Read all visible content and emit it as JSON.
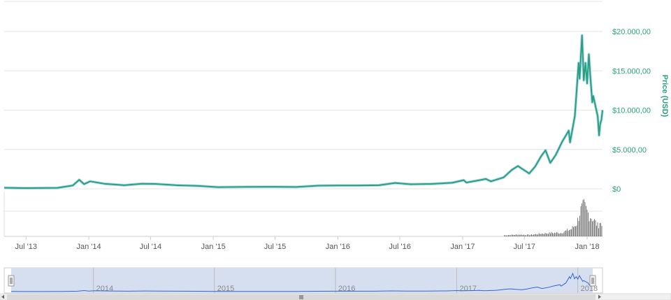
{
  "chart_data": {
    "type": "area",
    "y_axis_title": "Price (USD)",
    "y_ticks": [
      {
        "value": 0,
        "label": "$0"
      },
      {
        "value": 5000,
        "label": "$5.000,00"
      },
      {
        "value": 10000,
        "label": "$10.000,00"
      },
      {
        "value": 15000,
        "label": "$15.000,00"
      },
      {
        "value": 20000,
        "label": "$20.000,00"
      }
    ],
    "ylim": [
      0,
      24000
    ],
    "x_ticks": [
      {
        "date": "2013-07-01",
        "label": "Jul '13"
      },
      {
        "date": "2014-01-01",
        "label": "Jan '14"
      },
      {
        "date": "2014-07-01",
        "label": "Jul '14"
      },
      {
        "date": "2015-01-01",
        "label": "Jan '15"
      },
      {
        "date": "2015-07-01",
        "label": "Jul '15"
      },
      {
        "date": "2016-01-01",
        "label": "Jan '16"
      },
      {
        "date": "2016-07-01",
        "label": "Jul '16"
      },
      {
        "date": "2017-01-01",
        "label": "Jan '17"
      },
      {
        "date": "2017-07-01",
        "label": "Jul '17"
      },
      {
        "date": "2018-01-01",
        "label": "Jan '18"
      }
    ],
    "x_range": [
      "2013-04-28",
      "2018-02-15"
    ],
    "series": [
      {
        "color": "#27a17e",
        "points": [
          [
            "2013-04-28",
            135
          ],
          [
            "2013-07-01",
            90
          ],
          [
            "2013-10-01",
            125
          ],
          [
            "2013-11-15",
            420
          ],
          [
            "2013-12-04",
            1150
          ],
          [
            "2013-12-18",
            600
          ],
          [
            "2014-01-05",
            950
          ],
          [
            "2014-02-15",
            650
          ],
          [
            "2014-04-15",
            450
          ],
          [
            "2014-06-05",
            650
          ],
          [
            "2014-07-15",
            620
          ],
          [
            "2014-09-15",
            450
          ],
          [
            "2014-11-15",
            370
          ],
          [
            "2015-01-15",
            210
          ],
          [
            "2015-04-01",
            250
          ],
          [
            "2015-07-01",
            260
          ],
          [
            "2015-09-01",
            230
          ],
          [
            "2015-11-05",
            400
          ],
          [
            "2016-01-01",
            430
          ],
          [
            "2016-03-01",
            420
          ],
          [
            "2016-05-01",
            450
          ],
          [
            "2016-06-17",
            750
          ],
          [
            "2016-08-01",
            580
          ],
          [
            "2016-10-01",
            620
          ],
          [
            "2016-12-01",
            760
          ],
          [
            "2017-01-04",
            1100
          ],
          [
            "2017-01-12",
            800
          ],
          [
            "2017-02-20",
            1100
          ],
          [
            "2017-03-10",
            1250
          ],
          [
            "2017-03-25",
            950
          ],
          [
            "2017-05-01",
            1450
          ],
          [
            "2017-05-25",
            2400
          ],
          [
            "2017-06-12",
            2900
          ],
          [
            "2017-07-15",
            1950
          ],
          [
            "2017-08-01",
            2800
          ],
          [
            "2017-08-20",
            4200
          ],
          [
            "2017-09-01",
            4900
          ],
          [
            "2017-09-15",
            3300
          ],
          [
            "2017-10-01",
            4300
          ],
          [
            "2017-10-20",
            6000
          ],
          [
            "2017-11-08",
            7400
          ],
          [
            "2017-11-12",
            5900
          ],
          [
            "2017-11-26",
            9300
          ],
          [
            "2017-12-07",
            16000
          ],
          [
            "2017-12-10",
            14000
          ],
          [
            "2017-12-17",
            19500
          ],
          [
            "2017-12-22",
            13800
          ],
          [
            "2017-12-27",
            16000
          ],
          [
            "2018-01-01",
            13400
          ],
          [
            "2018-01-06",
            17100
          ],
          [
            "2018-01-10",
            14500
          ],
          [
            "2018-01-16",
            11000
          ],
          [
            "2018-01-19",
            11800
          ],
          [
            "2018-02-01",
            9200
          ],
          [
            "2018-02-05",
            6800
          ],
          [
            "2018-02-08",
            8200
          ],
          [
            "2018-02-12",
            8800
          ],
          [
            "2018-02-15",
            10000
          ]
        ]
      }
    ],
    "volume": {
      "color": "#7a7a7a",
      "points": [
        [
          "2017-05-01",
          0.04
        ],
        [
          "2017-06-15",
          0.06
        ],
        [
          "2017-07-15",
          0.05
        ],
        [
          "2017-08-15",
          0.09
        ],
        [
          "2017-09-15",
          0.12
        ],
        [
          "2017-10-15",
          0.12
        ],
        [
          "2017-11-15",
          0.25
        ],
        [
          "2017-12-01",
          0.45
        ],
        [
          "2017-12-10",
          0.85
        ],
        [
          "2017-12-22",
          1.0
        ],
        [
          "2018-01-05",
          0.75
        ],
        [
          "2018-01-17",
          0.6
        ],
        [
          "2018-02-01",
          0.35
        ],
        [
          "2018-02-06",
          0.5
        ],
        [
          "2018-02-15",
          0.3
        ]
      ]
    },
    "navigator": {
      "labels": [
        "2014",
        "2015",
        "2016",
        "2017",
        "2018"
      ],
      "label_dates": [
        "2014-01-01",
        "2015-01-01",
        "2016-01-01",
        "2017-01-01",
        "2018-01-01"
      ],
      "selection": [
        "2013-04-28",
        "2018-02-15"
      ],
      "line_color": "#3366cc",
      "fill_color": "#d6dff0"
    },
    "grid": true
  }
}
